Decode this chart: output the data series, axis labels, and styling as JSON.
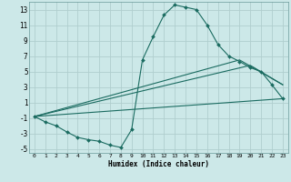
{
  "title": "",
  "xlabel": "Humidex (Indice chaleur)",
  "xlim": [
    -0.5,
    23.5
  ],
  "ylim": [
    -5.5,
    14.0
  ],
  "yticks": [
    -5,
    -3,
    -1,
    1,
    3,
    5,
    7,
    9,
    11,
    13
  ],
  "xticks": [
    0,
    1,
    2,
    3,
    4,
    5,
    6,
    7,
    8,
    9,
    10,
    11,
    12,
    13,
    14,
    15,
    16,
    17,
    18,
    19,
    20,
    21,
    22,
    23
  ],
  "bg_color": "#cce8e8",
  "grid_color": "#b0cece",
  "line_color": "#1a6b60",
  "main_series": {
    "x": [
      0,
      1,
      2,
      3,
      4,
      5,
      6,
      7,
      8,
      9,
      10,
      11,
      12,
      13,
      14,
      15,
      16,
      17,
      18,
      19,
      20,
      21,
      22,
      23
    ],
    "y": [
      -0.8,
      -1.5,
      -2.0,
      -2.8,
      -3.5,
      -3.8,
      -4.0,
      -4.5,
      -4.8,
      -2.5,
      6.5,
      9.5,
      12.3,
      13.6,
      13.3,
      13.0,
      11.0,
      8.5,
      7.0,
      6.3,
      5.5,
      5.0,
      3.3,
      1.5
    ]
  },
  "line_series": [
    {
      "x": [
        0,
        23
      ],
      "y": [
        -0.8,
        1.5
      ]
    },
    {
      "x": [
        0,
        20,
        23
      ],
      "y": [
        -0.8,
        5.8,
        3.3
      ]
    },
    {
      "x": [
        0,
        19,
        23
      ],
      "y": [
        -0.8,
        6.5,
        3.3
      ]
    }
  ]
}
